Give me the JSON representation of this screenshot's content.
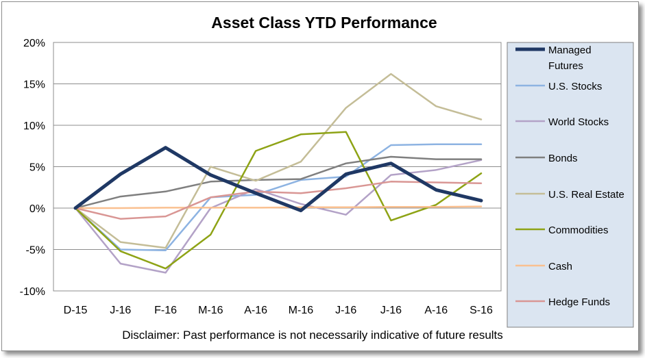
{
  "chart_data": {
    "type": "line",
    "title": "Asset Class YTD Performance",
    "categories": [
      "D-15",
      "J-16",
      "F-16",
      "M-16",
      "A-16",
      "M-16",
      "J-16",
      "J-16",
      "A-16",
      "S-16"
    ],
    "y_ticks": [
      "20%",
      "15%",
      "10%",
      "5%",
      "0%",
      "-5%",
      "-10%"
    ],
    "ylim": [
      -10,
      20
    ],
    "y_unit": "%",
    "grid": true,
    "legend_position": "right",
    "series": [
      {
        "name": "Managed Futures",
        "color": "#1f3864",
        "width": 5,
        "values": [
          0,
          4.1,
          7.3,
          4.0,
          1.8,
          -0.3,
          4.1,
          5.4,
          2.2,
          0.9
        ]
      },
      {
        "name": "U.S. Stocks",
        "color": "#8db3e2",
        "width": 2.5,
        "values": [
          0,
          -5.0,
          -5.1,
          1.3,
          1.6,
          3.4,
          3.8,
          7.6,
          7.7,
          7.7
        ]
      },
      {
        "name": "World Stocks",
        "color": "#b3a2c7",
        "width": 2.5,
        "values": [
          0,
          -6.7,
          -7.8,
          0.0,
          2.3,
          0.5,
          -0.8,
          4.0,
          4.6,
          5.8
        ]
      },
      {
        "name": "Bonds",
        "color": "#7f7f7f",
        "width": 2.5,
        "values": [
          0,
          1.4,
          2.0,
          3.2,
          3.4,
          3.5,
          5.4,
          6.2,
          5.9,
          5.9
        ]
      },
      {
        "name": "U.S. Real Estate",
        "color": "#c4bd97",
        "width": 2.5,
        "values": [
          0,
          -4.1,
          -4.8,
          5.0,
          3.3,
          5.6,
          12.1,
          16.2,
          12.3,
          10.7
        ]
      },
      {
        "name": "Commodities",
        "color": "#8ea315",
        "width": 2.5,
        "values": [
          0,
          -5.2,
          -7.3,
          -3.2,
          6.9,
          8.9,
          9.2,
          -1.5,
          0.4,
          4.2
        ]
      },
      {
        "name": "Cash",
        "color": "#fac090",
        "width": 2.5,
        "values": [
          0,
          0.0,
          0.05,
          0.05,
          0.05,
          0.1,
          0.1,
          0.15,
          0.15,
          0.2
        ]
      },
      {
        "name": "Hedge Funds",
        "color": "#d99694",
        "width": 2.5,
        "values": [
          0,
          -1.3,
          -1.0,
          1.3,
          2.0,
          1.8,
          2.4,
          3.2,
          3.1,
          3.0
        ]
      }
    ],
    "legend_labels": [
      [
        "Managed",
        "Futures"
      ],
      [
        "U.S. Stocks"
      ],
      [
        "World Stocks"
      ],
      [
        "Bonds"
      ],
      [
        "U.S. Real Estate"
      ],
      [
        "Commodities"
      ],
      [
        "Cash"
      ],
      [
        "Hedge Funds"
      ]
    ]
  },
  "disclaimer": "Disclaimer: Past performance is not necessarily indicative of future results"
}
